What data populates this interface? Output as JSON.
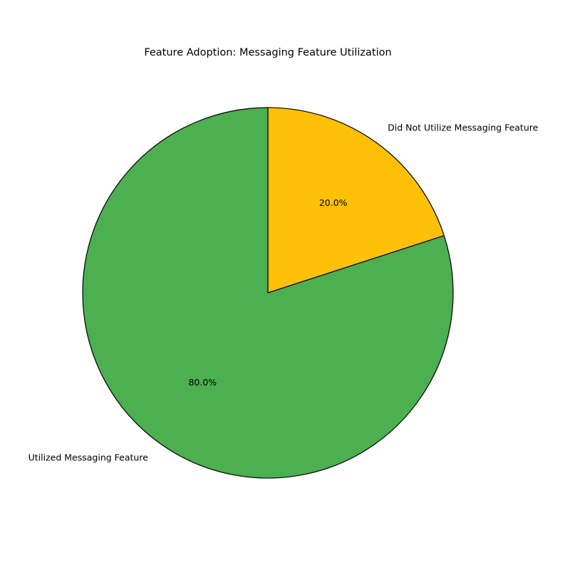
{
  "chart_data": {
    "type": "pie",
    "title": "Feature Adoption: Messaging Feature Utilization",
    "slices": [
      {
        "label": "Did Not Utilize Messaging Feature",
        "value": 20.0,
        "pct_label": "20.0%",
        "color": "#FFC107"
      },
      {
        "label": "Utilized Messaging Feature",
        "value": 80.0,
        "pct_label": "80.0%",
        "color": "#4CAF50"
      }
    ],
    "edge_color": "#000000",
    "start_angle_deg": 90,
    "direction": "clockwise"
  }
}
